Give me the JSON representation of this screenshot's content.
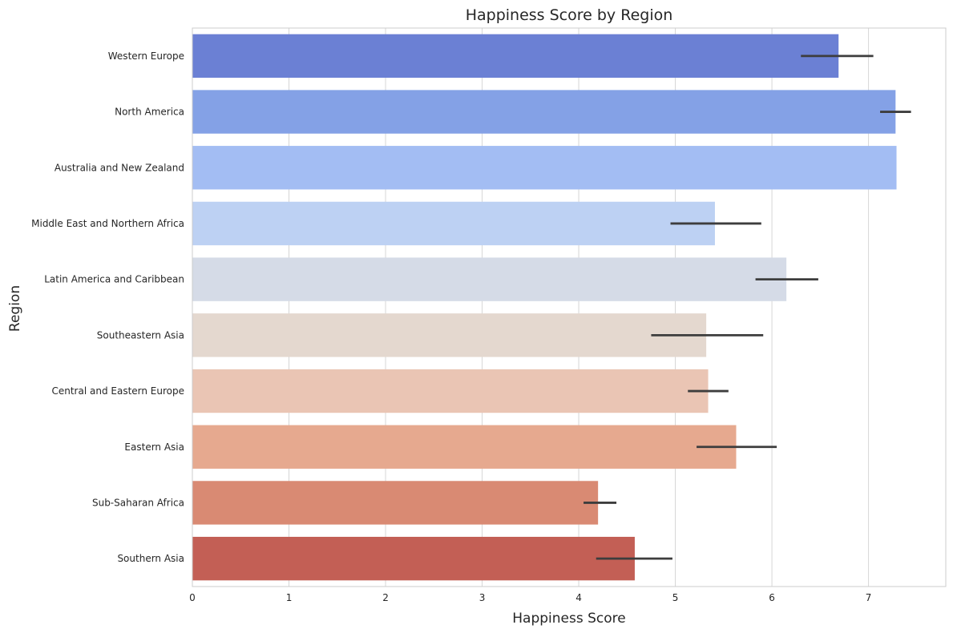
{
  "chart_data": {
    "type": "bar",
    "orientation": "horizontal",
    "title": "Happiness Score by Region",
    "xlabel": "Happiness Score",
    "ylabel": "Region",
    "xlim": [
      0,
      7.8
    ],
    "xticks": [
      0,
      1,
      2,
      3,
      4,
      5,
      6,
      7
    ],
    "grid": "vertical",
    "categories": [
      "Western Europe",
      "North America",
      "Australia and New Zealand",
      "Middle East and Northern Africa",
      "Latin America and Caribbean",
      "Southeastern Asia",
      "Central and Eastern Europe",
      "Eastern Asia",
      "Sub-Saharan Africa",
      "Southern Asia"
    ],
    "values": [
      6.69,
      7.28,
      7.29,
      5.41,
      6.15,
      5.32,
      5.34,
      5.63,
      4.2,
      4.58
    ],
    "error_low": [
      6.3,
      7.12,
      null,
      4.95,
      5.83,
      4.75,
      5.13,
      5.22,
      4.05,
      4.18
    ],
    "error_high": [
      7.05,
      7.44,
      null,
      5.89,
      6.48,
      5.91,
      5.55,
      6.05,
      4.39,
      4.97
    ],
    "colors": [
      "#6b80d4",
      "#84a1e6",
      "#a3bdf3",
      "#bdd1f3",
      "#d5dbe7",
      "#e4d8cf",
      "#eac5b4",
      "#e6a98f",
      "#d98a73",
      "#c35f55"
    ]
  }
}
